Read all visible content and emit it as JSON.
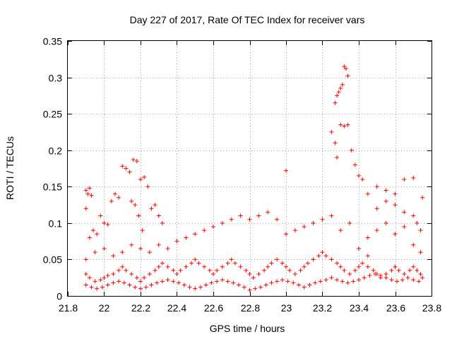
{
  "chart_data": {
    "type": "scatter",
    "title": "Day 227 of 2017, Rate Of TEC Index for receiver vars",
    "xlabel": "GPS time / hours",
    "ylabel": "ROTI / TECUs",
    "xlim": [
      21.8,
      23.8
    ],
    "ylim": [
      0,
      0.35
    ],
    "x_ticks": [
      21.8,
      22,
      22.2,
      22.4,
      22.6,
      22.8,
      23,
      23.2,
      23.4,
      23.6,
      23.8
    ],
    "x_tick_labels": [
      "21.8",
      "22",
      "22.2",
      "22.4",
      "22.6",
      "22.8",
      "23",
      "23.2",
      "23.4",
      "23.6",
      "23.8"
    ],
    "y_ticks": [
      0,
      0.05,
      0.1,
      0.15,
      0.2,
      0.25,
      0.3,
      0.35
    ],
    "y_tick_labels": [
      "0",
      "0.05",
      "0.1",
      "0.15",
      "0.2",
      "0.25",
      "0.3",
      "0.35"
    ],
    "grid": true,
    "marker": "+",
    "color": "#ff0000",
    "series": [
      {
        "name": "ROTI",
        "points": [
          [
            21.9,
            0.145
          ],
          [
            21.91,
            0.14
          ],
          [
            21.92,
            0.148
          ],
          [
            21.93,
            0.138
          ],
          [
            21.9,
            0.12
          ],
          [
            21.92,
            0.08
          ],
          [
            21.94,
            0.09
          ],
          [
            21.96,
            0.085
          ],
          [
            21.98,
            0.11
          ],
          [
            22.0,
            0.1
          ],
          [
            22.02,
            0.098
          ],
          [
            22.04,
            0.13
          ],
          [
            22.06,
            0.14
          ],
          [
            22.08,
            0.135
          ],
          [
            22.1,
            0.178
          ],
          [
            22.12,
            0.175
          ],
          [
            22.14,
            0.17
          ],
          [
            22.16,
            0.187
          ],
          [
            22.18,
            0.185
          ],
          [
            22.2,
            0.16
          ],
          [
            22.22,
            0.163
          ],
          [
            22.24,
            0.15
          ],
          [
            22.26,
            0.12
          ],
          [
            22.28,
            0.125
          ],
          [
            22.3,
            0.11
          ],
          [
            22.32,
            0.1
          ],
          [
            22.15,
            0.13
          ],
          [
            22.17,
            0.125
          ],
          [
            22.19,
            0.11
          ],
          [
            22.21,
            0.09
          ],
          [
            21.9,
            0.05
          ],
          [
            21.95,
            0.06
          ],
          [
            22.0,
            0.065
          ],
          [
            22.05,
            0.055
          ],
          [
            22.1,
            0.06
          ],
          [
            22.15,
            0.07
          ],
          [
            22.2,
            0.065
          ],
          [
            22.25,
            0.06
          ],
          [
            22.3,
            0.07
          ],
          [
            22.35,
            0.065
          ],
          [
            22.4,
            0.075
          ],
          [
            22.45,
            0.08
          ],
          [
            22.5,
            0.085
          ],
          [
            22.55,
            0.09
          ],
          [
            22.6,
            0.095
          ],
          [
            22.65,
            0.1
          ],
          [
            22.7,
            0.105
          ],
          [
            22.75,
            0.11
          ],
          [
            22.8,
            0.105
          ],
          [
            22.85,
            0.11
          ],
          [
            22.9,
            0.115
          ],
          [
            22.95,
            0.105
          ],
          [
            23.0,
            0.085
          ],
          [
            23.05,
            0.09
          ],
          [
            23.1,
            0.095
          ],
          [
            23.15,
            0.1
          ],
          [
            23.2,
            0.105
          ],
          [
            23.25,
            0.11
          ],
          [
            23.3,
            0.09
          ],
          [
            23.35,
            0.1
          ],
          [
            23.0,
            0.172
          ],
          [
            23.25,
            0.225
          ],
          [
            23.27,
            0.21
          ],
          [
            23.28,
            0.19
          ],
          [
            23.3,
            0.235
          ],
          [
            23.32,
            0.233
          ],
          [
            23.34,
            0.235
          ],
          [
            23.36,
            0.2
          ],
          [
            23.38,
            0.18
          ],
          [
            23.4,
            0.165
          ],
          [
            23.42,
            0.16
          ],
          [
            23.27,
            0.265
          ],
          [
            23.28,
            0.275
          ],
          [
            23.29,
            0.28
          ],
          [
            23.3,
            0.285
          ],
          [
            23.31,
            0.29
          ],
          [
            23.32,
            0.315
          ],
          [
            23.33,
            0.312
          ],
          [
            23.34,
            0.302
          ],
          [
            23.45,
            0.14
          ],
          [
            23.5,
            0.15
          ],
          [
            23.55,
            0.145
          ],
          [
            23.6,
            0.14
          ],
          [
            23.65,
            0.16
          ],
          [
            23.7,
            0.162
          ],
          [
            23.75,
            0.135
          ],
          [
            23.5,
            0.12
          ],
          [
            23.55,
            0.13
          ],
          [
            23.6,
            0.125
          ],
          [
            23.65,
            0.115
          ],
          [
            23.7,
            0.11
          ],
          [
            23.72,
            0.1
          ],
          [
            23.74,
            0.09
          ],
          [
            23.45,
            0.08
          ],
          [
            23.5,
            0.09
          ],
          [
            23.55,
            0.1
          ],
          [
            23.6,
            0.085
          ],
          [
            23.65,
            0.095
          ],
          [
            23.7,
            0.07
          ],
          [
            23.74,
            0.06
          ],
          [
            23.4,
            0.065
          ],
          [
            23.45,
            0.055
          ],
          [
            21.9,
            0.03
          ],
          [
            21.92,
            0.025
          ],
          [
            21.95,
            0.02
          ],
          [
            21.98,
            0.022
          ],
          [
            22.0,
            0.025
          ],
          [
            22.02,
            0.028
          ],
          [
            22.05,
            0.03
          ],
          [
            22.08,
            0.035
          ],
          [
            22.1,
            0.04
          ],
          [
            22.12,
            0.035
          ],
          [
            22.15,
            0.03
          ],
          [
            22.18,
            0.025
          ],
          [
            22.2,
            0.02
          ],
          [
            22.22,
            0.025
          ],
          [
            22.25,
            0.03
          ],
          [
            22.28,
            0.035
          ],
          [
            22.3,
            0.04
          ],
          [
            22.32,
            0.045
          ],
          [
            22.35,
            0.04
          ],
          [
            22.38,
            0.035
          ],
          [
            22.4,
            0.03
          ],
          [
            22.42,
            0.035
          ],
          [
            22.45,
            0.04
          ],
          [
            22.48,
            0.045
          ],
          [
            22.5,
            0.05
          ],
          [
            22.52,
            0.045
          ],
          [
            22.55,
            0.04
          ],
          [
            22.58,
            0.035
          ],
          [
            22.6,
            0.03
          ],
          [
            22.62,
            0.035
          ],
          [
            22.65,
            0.04
          ],
          [
            22.68,
            0.045
          ],
          [
            22.7,
            0.05
          ],
          [
            22.72,
            0.045
          ],
          [
            22.75,
            0.04
          ],
          [
            22.78,
            0.035
          ],
          [
            22.8,
            0.03
          ],
          [
            22.82,
            0.025
          ],
          [
            22.85,
            0.03
          ],
          [
            22.88,
            0.035
          ],
          [
            22.9,
            0.04
          ],
          [
            22.92,
            0.045
          ],
          [
            22.95,
            0.05
          ],
          [
            22.98,
            0.045
          ],
          [
            23.0,
            0.04
          ],
          [
            23.02,
            0.035
          ],
          [
            23.05,
            0.03
          ],
          [
            23.08,
            0.035
          ],
          [
            23.1,
            0.04
          ],
          [
            23.12,
            0.045
          ],
          [
            23.15,
            0.05
          ],
          [
            23.18,
            0.055
          ],
          [
            23.2,
            0.06
          ],
          [
            23.22,
            0.055
          ],
          [
            23.25,
            0.05
          ],
          [
            23.28,
            0.045
          ],
          [
            23.3,
            0.04
          ],
          [
            23.32,
            0.035
          ],
          [
            23.35,
            0.03
          ],
          [
            23.38,
            0.035
          ],
          [
            23.4,
            0.04
          ],
          [
            23.42,
            0.045
          ],
          [
            23.45,
            0.04
          ],
          [
            23.48,
            0.035
          ],
          [
            23.5,
            0.03
          ],
          [
            23.52,
            0.025
          ],
          [
            23.55,
            0.03
          ],
          [
            23.58,
            0.035
          ],
          [
            23.6,
            0.04
          ],
          [
            23.62,
            0.035
          ],
          [
            23.65,
            0.03
          ],
          [
            23.68,
            0.035
          ],
          [
            23.7,
            0.04
          ],
          [
            23.72,
            0.035
          ],
          [
            23.74,
            0.03
          ],
          [
            21.9,
            0.015
          ],
          [
            21.93,
            0.012
          ],
          [
            21.96,
            0.01
          ],
          [
            21.99,
            0.012
          ],
          [
            22.02,
            0.015
          ],
          [
            22.05,
            0.018
          ],
          [
            22.08,
            0.02
          ],
          [
            22.11,
            0.018
          ],
          [
            22.14,
            0.015
          ],
          [
            22.17,
            0.012
          ],
          [
            22.2,
            0.01
          ],
          [
            22.23,
            0.012
          ],
          [
            22.26,
            0.015
          ],
          [
            22.29,
            0.018
          ],
          [
            22.32,
            0.02
          ],
          [
            22.35,
            0.022
          ],
          [
            22.38,
            0.02
          ],
          [
            22.41,
            0.018
          ],
          [
            22.44,
            0.015
          ],
          [
            22.47,
            0.012
          ],
          [
            22.5,
            0.01
          ],
          [
            22.53,
            0.012
          ],
          [
            22.56,
            0.015
          ],
          [
            22.59,
            0.018
          ],
          [
            22.62,
            0.02
          ],
          [
            22.65,
            0.022
          ],
          [
            22.68,
            0.02
          ],
          [
            22.71,
            0.018
          ],
          [
            22.74,
            0.015
          ],
          [
            22.77,
            0.012
          ],
          [
            22.8,
            0.008
          ],
          [
            22.83,
            0.01
          ],
          [
            22.86,
            0.012
          ],
          [
            22.89,
            0.015
          ],
          [
            22.92,
            0.018
          ],
          [
            22.95,
            0.02
          ],
          [
            22.98,
            0.022
          ],
          [
            23.01,
            0.02
          ],
          [
            23.04,
            0.018
          ],
          [
            23.07,
            0.015
          ],
          [
            23.1,
            0.012
          ],
          [
            23.13,
            0.015
          ],
          [
            23.16,
            0.018
          ],
          [
            23.19,
            0.02
          ],
          [
            23.22,
            0.022
          ],
          [
            23.25,
            0.025
          ],
          [
            23.28,
            0.022
          ],
          [
            23.31,
            0.02
          ],
          [
            23.34,
            0.018
          ],
          [
            23.37,
            0.02
          ],
          [
            23.4,
            0.022
          ],
          [
            23.43,
            0.025
          ],
          [
            23.46,
            0.028
          ],
          [
            23.49,
            0.03
          ],
          [
            23.52,
            0.028
          ],
          [
            23.55,
            0.025
          ],
          [
            23.58,
            0.022
          ],
          [
            23.61,
            0.02
          ],
          [
            23.64,
            0.022
          ],
          [
            23.67,
            0.025
          ],
          [
            23.7,
            0.022
          ],
          [
            23.73,
            0.02
          ],
          [
            23.75,
            0.025
          ]
        ]
      }
    ]
  }
}
